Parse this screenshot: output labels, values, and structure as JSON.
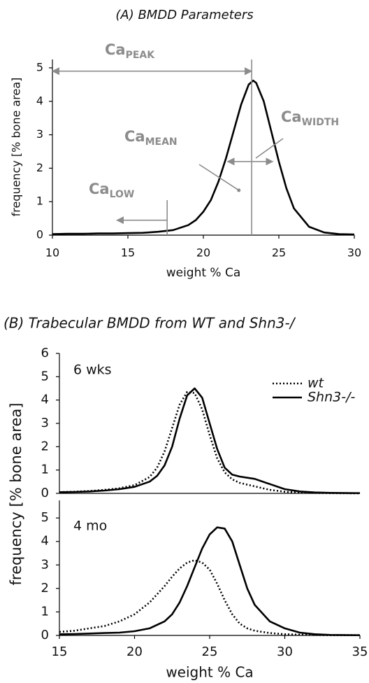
{
  "chart_data": [
    {
      "type": "line",
      "title": "(A) BMDD Parameters",
      "ylabel": "frequency [% bone area]",
      "xlabel": "weight % Ca",
      "xlim": [
        10,
        30
      ],
      "xticks": [
        10,
        15,
        20,
        25,
        30
      ],
      "ylim": [
        0,
        5.25
      ],
      "yticks": [
        0,
        1,
        2,
        3,
        4,
        5
      ],
      "x": [
        10,
        11,
        12,
        13,
        14,
        15,
        16,
        17,
        18,
        19,
        19.5,
        20,
        20.5,
        21,
        21.5,
        22,
        22.5,
        23,
        23.3,
        23.5,
        24,
        24.5,
        25,
        25.5,
        26,
        27,
        28,
        29,
        30
      ],
      "series": [
        {
          "color": "#000000",
          "line_style": "solid",
          "values": [
            0.03,
            0.04,
            0.04,
            0.05,
            0.05,
            0.06,
            0.07,
            0.1,
            0.15,
            0.3,
            0.45,
            0.7,
            1.05,
            1.6,
            2.3,
            3.1,
            3.9,
            4.5,
            4.62,
            4.55,
            4.0,
            3.1,
            2.2,
            1.4,
            0.8,
            0.25,
            0.08,
            0.03,
            0.02
          ]
        }
      ],
      "annotations": [
        {
          "text": "Ca",
          "subscript": "PEAK",
          "x": 23.2,
          "y": 4.9
        },
        {
          "text": "Ca",
          "subscript": "MEAN",
          "x": 22.35,
          "y": 1.34
        },
        {
          "text": "Ca",
          "subscript": "WIDTH",
          "x1": 21.6,
          "x2": 24.6,
          "y": 2.2
        },
        {
          "text": "Ca",
          "subscript": "LOW",
          "x": 17.6,
          "y": 0.55
        }
      ],
      "annotation_color": "#8c8c8c"
    },
    {
      "type": "line",
      "title": "(B) Trabecular BMDD from WT and Shn3-/",
      "ylabel": "frequency [% bone area]",
      "panel_label": "6 wks",
      "xlim": [
        15,
        35
      ],
      "ylim": [
        0,
        6
      ],
      "yticks": [
        0,
        1,
        2,
        3,
        4,
        5,
        6
      ],
      "x": [
        15,
        16,
        17,
        18,
        19,
        20,
        21,
        21.5,
        22,
        22.5,
        23,
        23.5,
        24,
        24.5,
        25,
        25.5,
        26,
        26.5,
        27,
        28,
        29,
        30,
        31,
        32,
        33,
        35
      ],
      "series": [
        {
          "name": "wt",
          "color": "#000000",
          "line_style": "dotted",
          "values": [
            0.05,
            0.07,
            0.1,
            0.15,
            0.22,
            0.35,
            0.7,
            1.1,
            1.8,
            2.8,
            3.8,
            4.35,
            4.3,
            3.6,
            2.5,
            1.5,
            0.9,
            0.6,
            0.45,
            0.3,
            0.15,
            0.07,
            0.03,
            0.02,
            0.01,
            0.0
          ]
        },
        {
          "name": "Shn3-/-",
          "color": "#000000",
          "line_style": "solid",
          "values": [
            0.05,
            0.06,
            0.08,
            0.12,
            0.18,
            0.28,
            0.5,
            0.75,
            1.2,
            2.0,
            3.2,
            4.2,
            4.5,
            4.1,
            3.0,
            1.9,
            1.1,
            0.8,
            0.72,
            0.62,
            0.4,
            0.18,
            0.08,
            0.04,
            0.02,
            0.01
          ]
        }
      ]
    },
    {
      "type": "line",
      "xlabel": "weight % Ca",
      "panel_label": "4 mo",
      "xlim": [
        15,
        35
      ],
      "xticks": [
        15,
        20,
        25,
        30,
        35
      ],
      "ylim": [
        0,
        5.75
      ],
      "yticks": [
        0,
        1,
        2,
        3,
        4,
        5
      ],
      "x": [
        15,
        16,
        17,
        18,
        19,
        20,
        21,
        22,
        22.5,
        23,
        23.5,
        24,
        24.5,
        25,
        25.5,
        26,
        26.5,
        27,
        27.5,
        28,
        29,
        30,
        31,
        32,
        33,
        35
      ],
      "series": [
        {
          "color": "#000000",
          "line_style": "dotted",
          "values": [
            0.15,
            0.2,
            0.3,
            0.4,
            0.6,
            0.9,
            1.4,
            2.1,
            2.5,
            2.85,
            3.1,
            3.2,
            3.1,
            2.8,
            2.2,
            1.5,
            0.9,
            0.5,
            0.3,
            0.2,
            0.1,
            0.05,
            0.03,
            0.02,
            0.01,
            0.01
          ]
        },
        {
          "color": "#000000",
          "line_style": "solid",
          "values": [
            0.05,
            0.06,
            0.08,
            0.1,
            0.12,
            0.18,
            0.3,
            0.6,
            0.9,
            1.4,
            2.1,
            2.9,
            3.7,
            4.3,
            4.6,
            4.55,
            4.0,
            3.0,
            2.0,
            1.3,
            0.6,
            0.3,
            0.12,
            0.05,
            0.02,
            0.01
          ]
        }
      ]
    }
  ]
}
